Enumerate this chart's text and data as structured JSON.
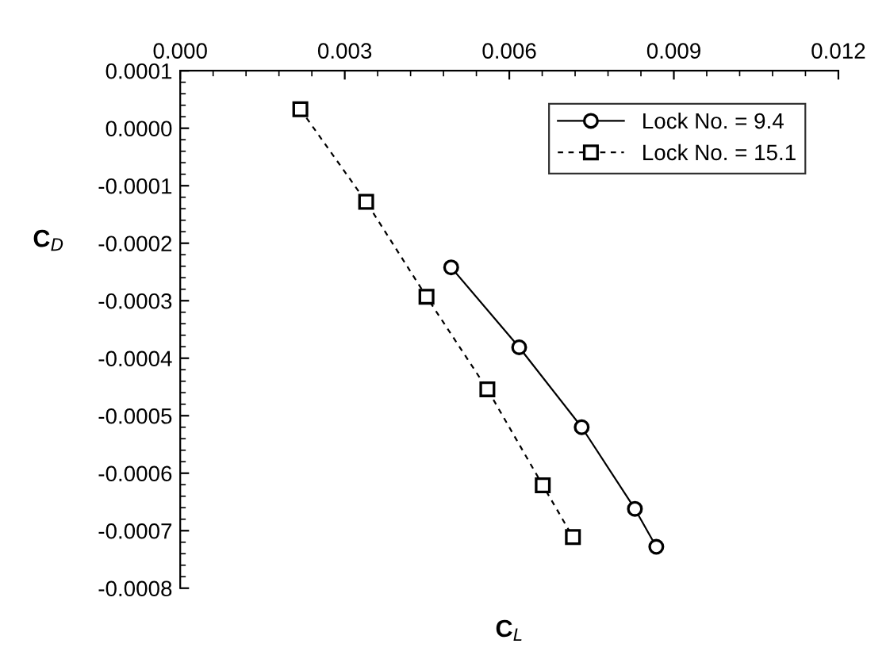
{
  "chart_data": {
    "type": "line",
    "xlabel": "C$_{L}$",
    "ylabel": "C$_{D}$",
    "series": [
      {
        "name": "Lock No. = 9.4",
        "color": "#000000",
        "marker": "circle",
        "line_style": "solid",
        "x": [
          0.00494,
          0.00618,
          0.00732,
          0.00829,
          0.00868
        ],
        "values": [
          -0.000242,
          -0.000381,
          -0.00052,
          -0.000662,
          -0.000728
        ]
      },
      {
        "name": "Lock No. = 15.1",
        "color": "#000000",
        "marker": "square",
        "line_style": "dashed",
        "x": [
          0.00219,
          0.00339,
          0.00449,
          0.0056,
          0.00661,
          0.00716
        ],
        "values": [
          3.3e-05,
          -0.000128,
          -0.000293,
          -0.000454,
          -0.000621,
          -0.000711
        ]
      }
    ],
    "xlim": [
      0.0,
      0.012
    ],
    "xticks": [
      {
        "value": 0.0,
        "label": "0.000"
      },
      0.003,
      0.006,
      0.009,
      0.012
    ],
    "ylim": [
      -0.0008,
      0.0001
    ],
    "yticks": [
      {
        "value": -0.0008,
        "label": "-0.0008"
      },
      {
        "value": -0.0007,
        "label": "-0.0007"
      },
      {
        "value": -0.0006,
        "label": "-0.0006"
      },
      {
        "value": -0.0005,
        "label": "-0.0005"
      },
      {
        "value": -0.0004,
        "label": "-0.0004"
      },
      {
        "value": -0.0003,
        "label": "-0.0003"
      },
      {
        "value": -0.0002,
        "label": "-0.0002"
      },
      {
        "value": -0.0001,
        "label": "-0.0001"
      },
      {
        "value": 0.0,
        "label": "0.0000"
      },
      {
        "value": 0.0001,
        "label": "0.0001"
      }
    ],
    "grid": false,
    "legend": "top right"
  }
}
